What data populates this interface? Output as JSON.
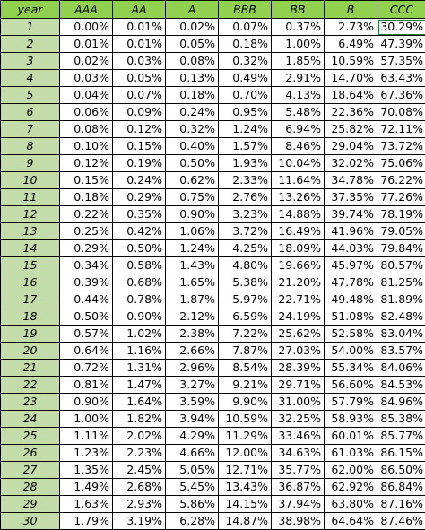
{
  "table": {
    "columns": [
      "year",
      "AAA",
      "AA",
      "A",
      "BBB",
      "BB",
      "B",
      "CCC"
    ],
    "rows": [
      [
        "1",
        "0.00%",
        "0.01%",
        "0.02%",
        "0.07%",
        "0.37%",
        "2.73%",
        "30.29%"
      ],
      [
        "2",
        "0.01%",
        "0.01%",
        "0.05%",
        "0.18%",
        "1.00%",
        "6.49%",
        "47.39%"
      ],
      [
        "3",
        "0.02%",
        "0.03%",
        "0.08%",
        "0.32%",
        "1.85%",
        "10.59%",
        "57.35%"
      ],
      [
        "4",
        "0.03%",
        "0.05%",
        "0.13%",
        "0.49%",
        "2.91%",
        "14.70%",
        "63.43%"
      ],
      [
        "5",
        "0.04%",
        "0.07%",
        "0.18%",
        "0.70%",
        "4.13%",
        "18.64%",
        "67.36%"
      ],
      [
        "6",
        "0.06%",
        "0.09%",
        "0.24%",
        "0.95%",
        "5.48%",
        "22.36%",
        "70.08%"
      ],
      [
        "7",
        "0.08%",
        "0.12%",
        "0.32%",
        "1.24%",
        "6.94%",
        "25.82%",
        "72.11%"
      ],
      [
        "8",
        "0.10%",
        "0.15%",
        "0.40%",
        "1.57%",
        "8.46%",
        "29.04%",
        "73.72%"
      ],
      [
        "9",
        "0.12%",
        "0.19%",
        "0.50%",
        "1.93%",
        "10.04%",
        "32.02%",
        "75.06%"
      ],
      [
        "10",
        "0.15%",
        "0.24%",
        "0.62%",
        "2.33%",
        "11.64%",
        "34.78%",
        "76.22%"
      ],
      [
        "11",
        "0.18%",
        "0.29%",
        "0.75%",
        "2.76%",
        "13.26%",
        "37.35%",
        "77.26%"
      ],
      [
        "12",
        "0.22%",
        "0.35%",
        "0.90%",
        "3.23%",
        "14.88%",
        "39.74%",
        "78.19%"
      ],
      [
        "13",
        "0.25%",
        "0.42%",
        "1.06%",
        "3.72%",
        "16.49%",
        "41.96%",
        "79.05%"
      ],
      [
        "14",
        "0.29%",
        "0.50%",
        "1.24%",
        "4.25%",
        "18.09%",
        "44.03%",
        "79.84%"
      ],
      [
        "15",
        "0.34%",
        "0.58%",
        "1.43%",
        "4.80%",
        "19.66%",
        "45.97%",
        "80.57%"
      ],
      [
        "16",
        "0.39%",
        "0.68%",
        "1.65%",
        "5.38%",
        "21.20%",
        "47.78%",
        "81.25%"
      ],
      [
        "17",
        "0.44%",
        "0.78%",
        "1.87%",
        "5.97%",
        "22.71%",
        "49.48%",
        "81.89%"
      ],
      [
        "18",
        "0.50%",
        "0.90%",
        "2.12%",
        "6.59%",
        "24.19%",
        "51.08%",
        "82.48%"
      ],
      [
        "19",
        "0.57%",
        "1.02%",
        "2.38%",
        "7.22%",
        "25.62%",
        "52.58%",
        "83.04%"
      ],
      [
        "20",
        "0.64%",
        "1.16%",
        "2.66%",
        "7.87%",
        "27.03%",
        "54.00%",
        "83.57%"
      ],
      [
        "21",
        "0.72%",
        "1.31%",
        "2.96%",
        "8.54%",
        "28.39%",
        "55.34%",
        "84.06%"
      ],
      [
        "22",
        "0.81%",
        "1.47%",
        "3.27%",
        "9.21%",
        "29.71%",
        "56.60%",
        "84.53%"
      ],
      [
        "23",
        "0.90%",
        "1.64%",
        "3.59%",
        "9.90%",
        "31.00%",
        "57.79%",
        "84.96%"
      ],
      [
        "24",
        "1.00%",
        "1.82%",
        "3.94%",
        "10.59%",
        "32.25%",
        "58.93%",
        "85.38%"
      ],
      [
        "25",
        "1.11%",
        "2.02%",
        "4.29%",
        "11.29%",
        "33.46%",
        "60.01%",
        "85.77%"
      ],
      [
        "26",
        "1.23%",
        "2.23%",
        "4.66%",
        "12.00%",
        "34.63%",
        "61.03%",
        "86.15%"
      ],
      [
        "27",
        "1.35%",
        "2.45%",
        "5.05%",
        "12.71%",
        "35.77%",
        "62.00%",
        "86.50%"
      ],
      [
        "28",
        "1.49%",
        "2.68%",
        "5.45%",
        "13.43%",
        "36.87%",
        "62.92%",
        "86.84%"
      ],
      [
        "29",
        "1.63%",
        "2.93%",
        "5.86%",
        "14.15%",
        "37.94%",
        "63.80%",
        "87.16%"
      ],
      [
        "30",
        "1.79%",
        "3.19%",
        "6.28%",
        "14.87%",
        "38.98%",
        "64.64%",
        "87.46%"
      ]
    ]
  },
  "colors": {
    "header_fill": "#92d050",
    "year_fill": "#c4dca9",
    "selected_outline": "#1e7b3c"
  }
}
